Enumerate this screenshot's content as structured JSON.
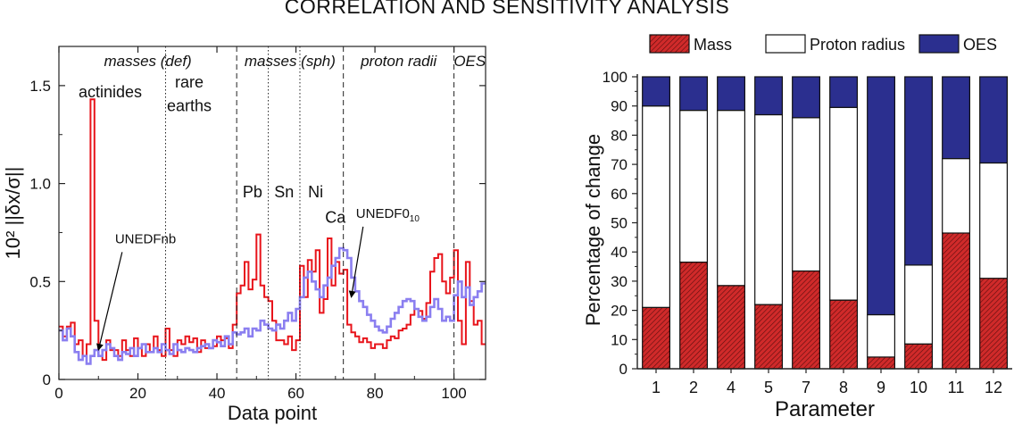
{
  "title": "CORRELATION AND SENSITIVITY ANALYSIS",
  "chart_data": [
    {
      "type": "line",
      "style": "step",
      "xlabel": "Data point",
      "ylabel": "10² ||δx/σ||",
      "xlim": [
        0,
        108
      ],
      "ylim": [
        0,
        1.7
      ],
      "xticks": [
        0,
        20,
        40,
        60,
        80,
        100
      ],
      "yticks": [
        0,
        0.5,
        1.0,
        1.5
      ],
      "ytick_labels": [
        "0",
        "0.5",
        "1.0",
        "1.5"
      ],
      "regions": [
        {
          "label": "masses (def)",
          "start": 0,
          "end": 45
        },
        {
          "label": "masses (sph)",
          "start": 45,
          "end": 72
        },
        {
          "label": "proton radii",
          "start": 72,
          "end": 100
        },
        {
          "label": "OES",
          "start": 100,
          "end": 108
        }
      ],
      "dividers": [
        {
          "x": 27,
          "style": "dotted"
        },
        {
          "x": 45,
          "style": "dashed"
        },
        {
          "x": 53,
          "style": "dotted"
        },
        {
          "x": 61,
          "style": "dotted"
        },
        {
          "x": 72,
          "style": "dashed"
        },
        {
          "x": 100,
          "style": "dashed"
        }
      ],
      "annotations": [
        {
          "text": "actinides",
          "x": 13,
          "y": 1.44
        },
        {
          "text": "rare",
          "x": 33,
          "y": 1.49
        },
        {
          "text": "earths",
          "x": 33,
          "y": 1.37
        },
        {
          "text": "Pb",
          "x": 49,
          "y": 0.93
        },
        {
          "text": "Sn",
          "x": 57,
          "y": 0.93
        },
        {
          "text": "Ni",
          "x": 65,
          "y": 0.93
        },
        {
          "text": "Ca",
          "x": 70,
          "y": 0.8
        }
      ],
      "arrow_labels": [
        {
          "text": "UNEDFnb",
          "x_from": 16,
          "y_from": 0.65,
          "x_to": 10,
          "y_to": 0.15
        },
        {
          "text": "UNEDF0",
          "subscript": "10",
          "x_from": 77,
          "y_from": 0.78,
          "x_to": 74,
          "y_to": 0.42
        }
      ],
      "series": [
        {
          "name": "UNEDFnb",
          "color": "#e8141b",
          "values": [
            0.27,
            0.22,
            0.27,
            0.29,
            0.18,
            0.2,
            0.12,
            0.18,
            1.43,
            0.3,
            0.12,
            0.1,
            0.2,
            0.15,
            0.15,
            0.12,
            0.2,
            0.15,
            0.12,
            0.21,
            0.16,
            0.12,
            0.18,
            0.14,
            0.22,
            0.15,
            0.12,
            0.26,
            0.15,
            0.12,
            0.2,
            0.18,
            0.22,
            0.19,
            0.21,
            0.14,
            0.2,
            0.16,
            0.16,
            0.17,
            0.22,
            0.2,
            0.21,
            0.16,
            0.28,
            0.44,
            0.48,
            0.6,
            0.46,
            0.51,
            0.74,
            0.48,
            0.42,
            0.4,
            0.3,
            0.2,
            0.2,
            0.18,
            0.22,
            0.15,
            0.2,
            0.58,
            0.42,
            0.61,
            0.55,
            0.66,
            0.34,
            0.41,
            0.72,
            0.48,
            0.6,
            0.54,
            0.56,
            0.28,
            0.24,
            0.22,
            0.19,
            0.21,
            0.19,
            0.16,
            0.18,
            0.18,
            0.16,
            0.2,
            0.22,
            0.21,
            0.25,
            0.26,
            0.28,
            0.33,
            0.36,
            0.35,
            0.31,
            0.39,
            0.55,
            0.62,
            0.64,
            0.5,
            0.44,
            0.52,
            0.66,
            0.3,
            0.18,
            0.6,
            0.4,
            0.28,
            0.3,
            0.18
          ]
        },
        {
          "name": "UNEDF0_10",
          "color": "#8b7ff0",
          "values": [
            0.25,
            0.2,
            0.26,
            0.22,
            0.14,
            0.1,
            0.12,
            0.08,
            0.12,
            0.15,
            0.12,
            0.15,
            0.18,
            0.16,
            0.12,
            0.1,
            0.14,
            0.13,
            0.16,
            0.12,
            0.16,
            0.18,
            0.14,
            0.14,
            0.16,
            0.14,
            0.18,
            0.15,
            0.13,
            0.18,
            0.15,
            0.14,
            0.16,
            0.15,
            0.14,
            0.16,
            0.17,
            0.18,
            0.16,
            0.2,
            0.19,
            0.17,
            0.22,
            0.18,
            0.24,
            0.23,
            0.24,
            0.26,
            0.22,
            0.26,
            0.25,
            0.3,
            0.28,
            0.26,
            0.25,
            0.28,
            0.26,
            0.3,
            0.34,
            0.3,
            0.36,
            0.42,
            0.52,
            0.55,
            0.5,
            0.46,
            0.42,
            0.48,
            0.52,
            0.58,
            0.62,
            0.67,
            0.66,
            0.62,
            0.52,
            0.45,
            0.4,
            0.37,
            0.33,
            0.3,
            0.27,
            0.25,
            0.24,
            0.27,
            0.31,
            0.34,
            0.37,
            0.4,
            0.41,
            0.4,
            0.36,
            0.32,
            0.3,
            0.32,
            0.37,
            0.41,
            0.36,
            0.3,
            0.32,
            0.3,
            0.43,
            0.5,
            0.42,
            0.47,
            0.38,
            0.42,
            0.45,
            0.49
          ]
        }
      ]
    },
    {
      "type": "bar",
      "stacked": true,
      "xlabel": "Parameter",
      "ylabel": "Percentage of change",
      "ylim": [
        0,
        100
      ],
      "yticks": [
        0,
        10,
        20,
        30,
        40,
        50,
        60,
        70,
        80,
        90,
        100
      ],
      "categories": [
        "1",
        "2",
        "4",
        "5",
        "7",
        "8",
        "9",
        "10",
        "11",
        "12"
      ],
      "legend": [
        "Mass",
        "Proton radius",
        "OES"
      ],
      "series": [
        {
          "name": "Mass",
          "color": "#d02a2a",
          "values": [
            21,
            36.5,
            28.5,
            22,
            33.5,
            23.5,
            4,
            8.5,
            46.5,
            31
          ]
        },
        {
          "name": "Proton radius",
          "color": "#ffffff",
          "values": [
            69,
            52,
            60,
            65,
            52.5,
            66,
            14.5,
            27,
            25.5,
            39.5
          ]
        },
        {
          "name": "OES",
          "color": "#2b2f8f",
          "values": [
            10,
            11.5,
            11.5,
            13,
            14,
            10.5,
            81.5,
            64.5,
            28,
            29.5
          ]
        }
      ]
    }
  ]
}
